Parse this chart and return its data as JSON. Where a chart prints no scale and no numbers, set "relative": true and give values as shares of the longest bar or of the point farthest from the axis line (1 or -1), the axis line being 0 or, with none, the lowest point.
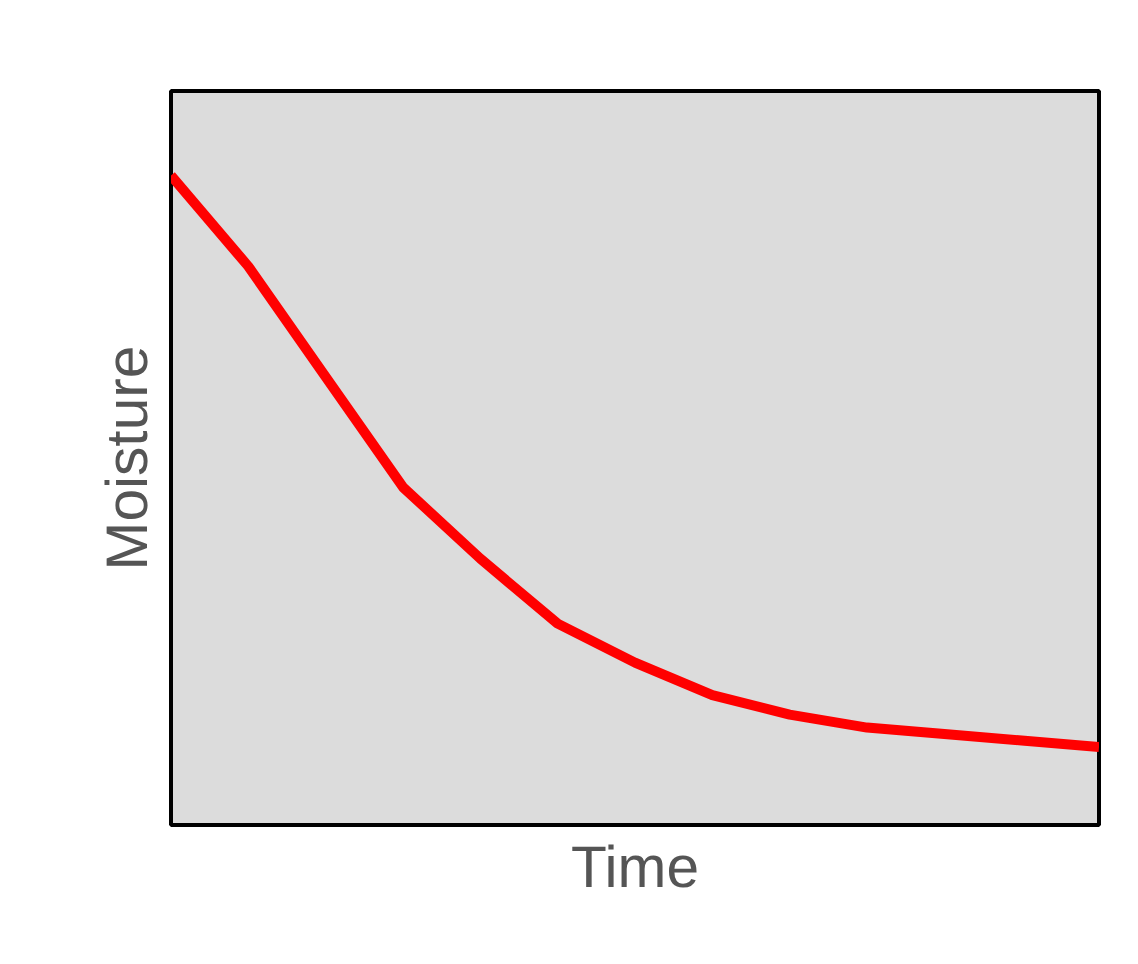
{
  "chart_data": {
    "type": "line",
    "xlabel": "Time",
    "ylabel": "Moisture",
    "relative": true,
    "categories": [
      null,
      null,
      null,
      null,
      null,
      null,
      null,
      null,
      null,
      null,
      null,
      null,
      null
    ],
    "series": [
      {
        "color": "#ff0000",
        "values": [
          1,
          0.86,
          0.69,
          0.52,
          0.41,
          0.31,
          0.25,
          0.2,
          0.17,
          0.15,
          0.14,
          0.13,
          0.12
        ]
      }
    ],
    "line_style": "solid"
  }
}
